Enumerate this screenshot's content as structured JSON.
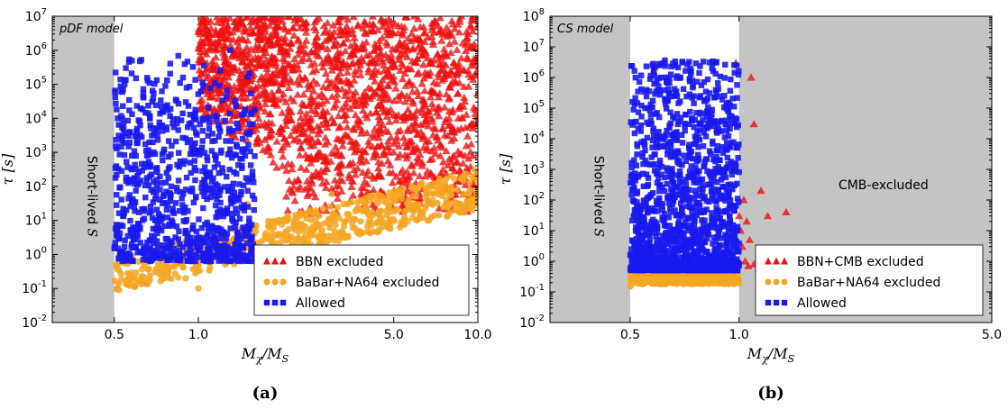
{
  "chart_data": [
    {
      "type": "scatter",
      "panel": "a",
      "caption": "(a)",
      "model_label": "pDF model",
      "xlabel": "M_χ/M_S",
      "ylabel": "τ [s]",
      "x_scale": "log",
      "y_scale": "log",
      "xlim": [
        0.3,
        10.0
      ],
      "ylim": [
        0.01,
        10000000
      ],
      "x_ticks": [
        {
          "value": 0.5,
          "label": "0.5"
        },
        {
          "value": 1.0,
          "label": "1.0"
        },
        {
          "value": 5.0,
          "label": "5.0"
        },
        {
          "value": 10.0,
          "label": "10.0"
        }
      ],
      "y_ticks": [
        {
          "value": 0.01,
          "base": "10",
          "exp": "-2"
        },
        {
          "value": 0.1,
          "base": "10",
          "exp": "-1"
        },
        {
          "value": 1,
          "base": "10",
          "exp": "0"
        },
        {
          "value": 10,
          "base": "10",
          "exp": "1"
        },
        {
          "value": 100,
          "base": "10",
          "exp": "2"
        },
        {
          "value": 1000,
          "base": "10",
          "exp": "3"
        },
        {
          "value": 10000,
          "base": "10",
          "exp": "4"
        },
        {
          "value": 100000,
          "base": "10",
          "exp": "5"
        },
        {
          "value": 1000000,
          "base": "10",
          "exp": "6"
        },
        {
          "value": 10000000,
          "base": "10",
          "exp": "7"
        }
      ],
      "shaded_regions": [
        {
          "label": "Short-lived S",
          "x_range": [
            0.3,
            0.5
          ]
        }
      ],
      "grid": false,
      "legend_position": "lower-right",
      "series": [
        {
          "name": "BBN excluded",
          "marker": "triangle",
          "color": "#ee1111",
          "region": {
            "x_range": [
              1.0,
              10.0
            ],
            "log10_tau_range": [
              1.2,
              7.0
            ],
            "density": 1800
          },
          "points": [
            [
              1.2,
              3000000
            ],
            [
              2.0,
              100000
            ],
            [
              3.0,
              10000
            ],
            [
              5.0,
              1000
            ],
            [
              8.0,
              100000
            ],
            [
              1.5,
              10000000
            ]
          ]
        },
        {
          "name": "BaBar+NA64 excluded",
          "marker": "circle",
          "color": "#f5a623",
          "region": {
            "x_range": [
              0.5,
              10.0
            ],
            "log10_tau_range": [
              -1.1,
              2.5
            ],
            "density": 700
          },
          "points": [
            [
              0.7,
              0.3
            ],
            [
              0.9,
              0.2
            ],
            [
              1.0,
              0.1
            ],
            [
              1.5,
              30
            ],
            [
              3.0,
              60
            ],
            [
              8.0,
              200
            ]
          ]
        },
        {
          "name": "Allowed",
          "marker": "square",
          "color": "#1a1aee",
          "region": {
            "x_range": [
              0.5,
              1.6
            ],
            "log10_tau_range": [
              -0.2,
              6.0
            ],
            "density": 900
          },
          "points": [
            [
              0.55,
              300000
            ],
            [
              0.7,
              10
            ],
            [
              0.8,
              100
            ],
            [
              1.0,
              1000
            ],
            [
              1.3,
              1000000
            ],
            [
              0.9,
              5
            ]
          ]
        }
      ]
    },
    {
      "type": "scatter",
      "panel": "b",
      "caption": "(b)",
      "model_label": "CS model",
      "xlabel": "M_χ/M_S",
      "ylabel": "τ [s]",
      "x_scale": "log",
      "y_scale": "log",
      "xlim": [
        0.3,
        5.0
      ],
      "ylim": [
        0.01,
        100000000
      ],
      "x_ticks": [
        {
          "value": 0.5,
          "label": "0.5"
        },
        {
          "value": 1.0,
          "label": "1.0"
        },
        {
          "value": 5.0,
          "label": "5.0"
        }
      ],
      "y_ticks": [
        {
          "value": 0.01,
          "base": "10",
          "exp": "-2"
        },
        {
          "value": 0.1,
          "base": "10",
          "exp": "-1"
        },
        {
          "value": 1,
          "base": "10",
          "exp": "0"
        },
        {
          "value": 10,
          "base": "10",
          "exp": "1"
        },
        {
          "value": 100,
          "base": "10",
          "exp": "2"
        },
        {
          "value": 1000,
          "base": "10",
          "exp": "3"
        },
        {
          "value": 10000,
          "base": "10",
          "exp": "4"
        },
        {
          "value": 100000,
          "base": "10",
          "exp": "5"
        },
        {
          "value": 1000000,
          "base": "10",
          "exp": "6"
        },
        {
          "value": 10000000,
          "base": "10",
          "exp": "7"
        },
        {
          "value": 100000000,
          "base": "10",
          "exp": "8"
        }
      ],
      "shaded_regions": [
        {
          "label": "Short-lived S",
          "x_range": [
            0.3,
            0.5
          ]
        },
        {
          "label": "CMB-excluded",
          "x_range": [
            1.0,
            5.0
          ]
        }
      ],
      "grid": false,
      "legend_position": "lower-right",
      "series": [
        {
          "name": "BBN+CMB excluded",
          "marker": "triangle",
          "color": "#ee1111",
          "points": [
            [
              0.98,
              3000000
            ],
            [
              1.03,
              100
            ],
            [
              1.05,
              20
            ],
            [
              1.08,
              1000000
            ],
            [
              1.1,
              30000
            ],
            [
              1.15,
              200
            ],
            [
              1.2,
              30
            ],
            [
              1.35,
              40
            ],
            [
              1.02,
              3
            ],
            [
              1.04,
              1
            ],
            [
              1.06,
              0.7
            ],
            [
              1.1,
              0.8
            ],
            [
              1.01,
              10
            ],
            [
              1.0,
              30
            ],
            [
              1.07,
              5
            ]
          ]
        },
        {
          "name": "BaBar+NA64 excluded",
          "marker": "circle",
          "color": "#f5a623",
          "region": {
            "x_range": [
              0.5,
              1.0
            ],
            "log10_tau_range": [
              -0.75,
              -0.3
            ],
            "density": 500
          },
          "points": [
            [
              0.5,
              0.15
            ],
            [
              0.7,
              0.25
            ],
            [
              0.95,
              0.35
            ]
          ]
        },
        {
          "name": "Allowed",
          "marker": "square",
          "color": "#1a1aee",
          "region": {
            "x_range": [
              0.5,
              1.0
            ],
            "log10_tau_range": [
              -0.3,
              6.6
            ],
            "density": 1500
          },
          "points": [
            [
              0.62,
              3000000
            ],
            [
              0.85,
              3000000
            ],
            [
              0.55,
              100000
            ],
            [
              0.75,
              10
            ],
            [
              0.9,
              1000
            ]
          ]
        }
      ]
    }
  ]
}
